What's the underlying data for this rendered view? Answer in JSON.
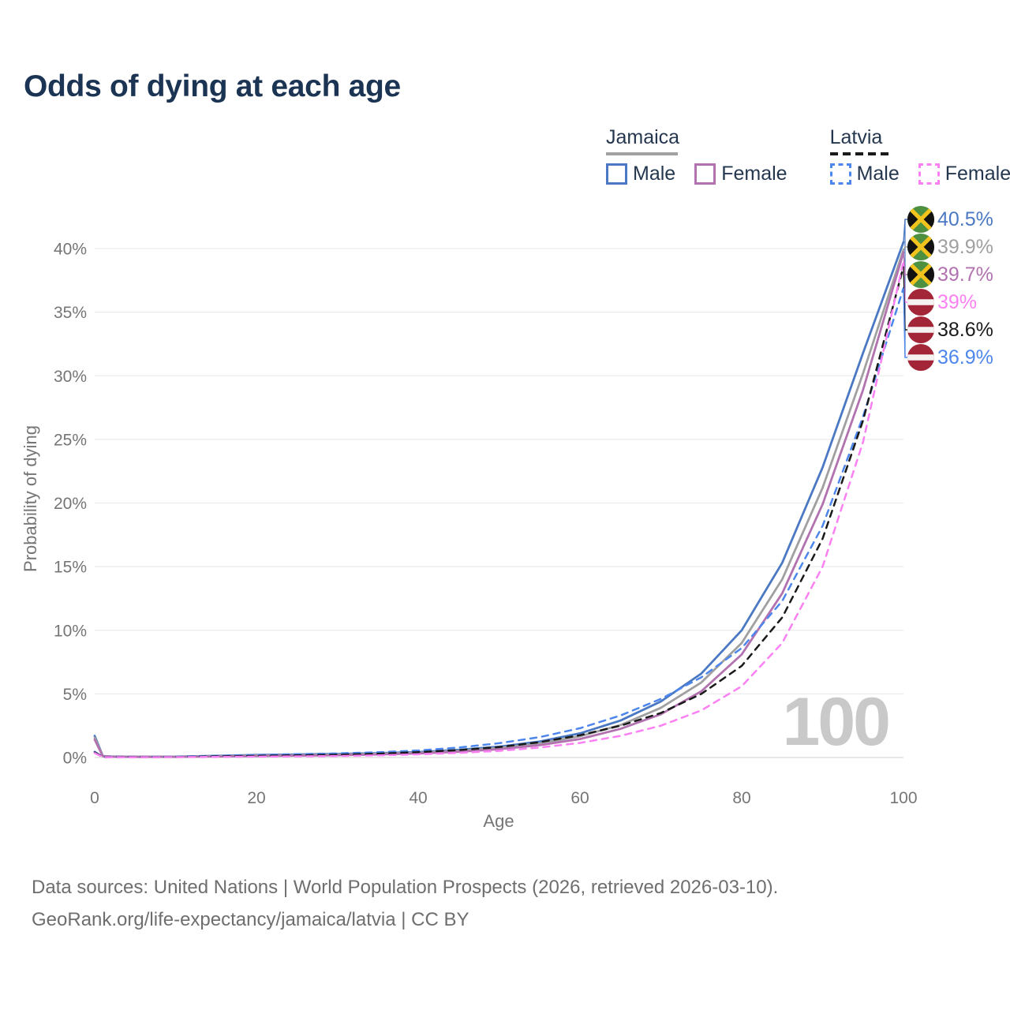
{
  "header": {
    "title": "Odds of dying at each age"
  },
  "legend": {
    "groups": [
      {
        "id": "jamaica",
        "title": "Jamaica",
        "line_style": "solid",
        "underline_color": "#a0a0a0",
        "items": [
          {
            "label": "Male",
            "color": "#4a78c2"
          },
          {
            "label": "Female",
            "color": "#b272b0"
          }
        ]
      },
      {
        "id": "latvia",
        "title": "Latvia",
        "line_style": "dashed",
        "underline_color": "#1a1a1a",
        "items": [
          {
            "label": "Male",
            "color": "#4d86ec"
          },
          {
            "label": "Female",
            "color": "#fb80f3"
          }
        ]
      }
    ]
  },
  "chart_data": {
    "type": "line",
    "title": "Odds of dying at each age",
    "xlabel": "Age",
    "ylabel": "Probability of dying",
    "xlim": [
      0,
      100
    ],
    "ylim": [
      0,
      42
    ],
    "x_ticks": [
      0,
      20,
      40,
      60,
      80,
      100
    ],
    "y_ticks": [
      0,
      5,
      10,
      15,
      20,
      25,
      30,
      35,
      40
    ],
    "y_tick_suffix": "%",
    "grid": "horizontal",
    "legend_position": "top-right",
    "watermark": "100",
    "x": [
      0,
      1,
      2,
      5,
      10,
      15,
      20,
      25,
      30,
      35,
      40,
      45,
      50,
      55,
      60,
      65,
      70,
      75,
      80,
      85,
      90,
      95,
      100
    ],
    "series": [
      {
        "id": "jamaica-male",
        "country": "Jamaica",
        "sex": "Male",
        "color": "#4a78c2",
        "dash": false,
        "end_label": "40.5%",
        "values": [
          1.7,
          0.12,
          0.08,
          0.06,
          0.07,
          0.13,
          0.2,
          0.24,
          0.28,
          0.34,
          0.43,
          0.6,
          0.85,
          1.25,
          1.9,
          2.9,
          4.4,
          6.6,
          10.0,
          15.3,
          22.8,
          31.8,
          40.5
        ]
      },
      {
        "id": "jamaica-both",
        "country": "Jamaica",
        "sex": "Both",
        "color": "#a0a0a0",
        "dash": false,
        "end_label": "39.9%",
        "values": [
          1.55,
          0.11,
          0.07,
          0.05,
          0.06,
          0.1,
          0.16,
          0.19,
          0.23,
          0.29,
          0.37,
          0.52,
          0.75,
          1.1,
          1.67,
          2.55,
          3.9,
          5.9,
          9.0,
          14.0,
          21.2,
          30.2,
          39.9
        ]
      },
      {
        "id": "jamaica-female",
        "country": "Jamaica",
        "sex": "Female",
        "color": "#b272b0",
        "dash": false,
        "end_label": "39.7%",
        "values": [
          1.4,
          0.1,
          0.06,
          0.05,
          0.05,
          0.08,
          0.12,
          0.15,
          0.18,
          0.24,
          0.32,
          0.45,
          0.65,
          0.97,
          1.45,
          2.25,
          3.4,
          5.2,
          8.1,
          12.9,
          19.9,
          28.9,
          39.7
        ]
      },
      {
        "id": "latvia-male",
        "country": "Latvia",
        "sex": "Male",
        "color": "#4d86ec",
        "dash": true,
        "end_label": "36.9%",
        "values": [
          0.45,
          0.04,
          0.03,
          0.04,
          0.06,
          0.13,
          0.2,
          0.26,
          0.32,
          0.41,
          0.55,
          0.78,
          1.12,
          1.6,
          2.3,
          3.3,
          4.6,
          6.3,
          8.6,
          12.3,
          18.2,
          26.8,
          36.9
        ]
      },
      {
        "id": "latvia-both",
        "country": "Latvia",
        "sex": "Both",
        "color": "#1a1a1a",
        "dash": true,
        "end_label": "38.6%",
        "values": [
          0.4,
          0.035,
          0.025,
          0.03,
          0.04,
          0.09,
          0.13,
          0.17,
          0.22,
          0.3,
          0.42,
          0.58,
          0.82,
          1.2,
          1.75,
          2.5,
          3.5,
          5.0,
          7.2,
          11.0,
          17.2,
          26.5,
          38.6
        ]
      },
      {
        "id": "latvia-female",
        "country": "Latvia",
        "sex": "Female",
        "color": "#fb80f3",
        "dash": true,
        "end_label": "39%",
        "values": [
          0.35,
          0.03,
          0.02,
          0.02,
          0.03,
          0.05,
          0.07,
          0.09,
          0.12,
          0.17,
          0.25,
          0.36,
          0.52,
          0.78,
          1.15,
          1.7,
          2.5,
          3.7,
          5.6,
          9.0,
          15.0,
          24.8,
          39.0
        ]
      }
    ],
    "flag_colors": {
      "jamaica": {
        "green": "#4d9140",
        "black": "#121212",
        "gold": "#f2c21d"
      },
      "latvia": {
        "carmine": "#a32638",
        "white": "#f5f2f2"
      }
    }
  },
  "footer": {
    "line1": "Data sources: United Nations | World Population Prospects (2026, retrieved 2026-03-10).",
    "line2": "GeoRank.org/life-expectancy/jamaica/latvia | CC BY"
  }
}
